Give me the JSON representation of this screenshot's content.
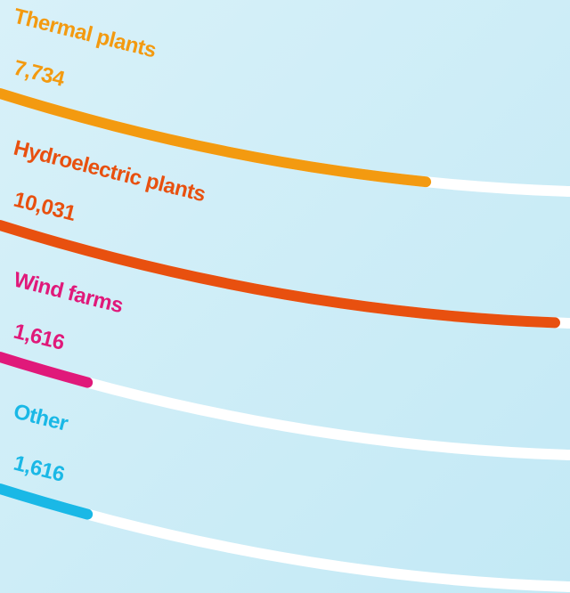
{
  "chart_data": {
    "type": "bar",
    "categories": [
      "Thermal plants",
      "Hydroelectric plants",
      "Wind farms",
      "Other"
    ],
    "values": [
      7734,
      10031,
      1616,
      1616
    ],
    "value_labels": [
      "7,734",
      "10,031",
      "1,616",
      "1,616"
    ],
    "colors": [
      "#f39a10",
      "#e8500f",
      "#e0197a",
      "#1ab8e6"
    ],
    "xlim": [
      0,
      10300
    ]
  }
}
